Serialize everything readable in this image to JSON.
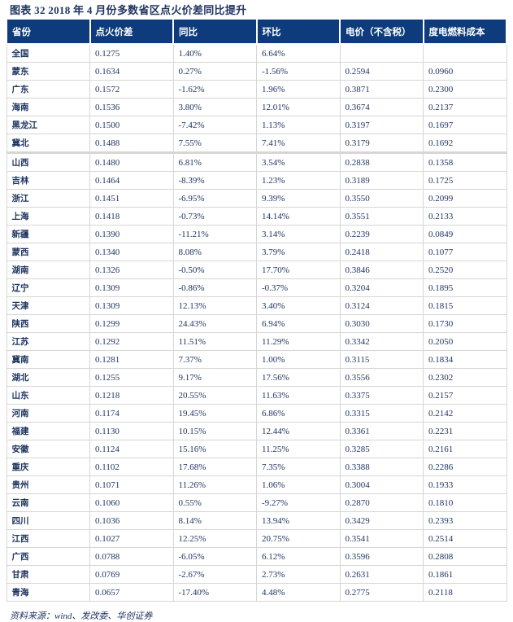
{
  "title": "图表 32   2018 年 4 月份多数省区点火价差同比提升",
  "table": {
    "headers": [
      "省份",
      "点火价差",
      "同比",
      "环比",
      "电价（不含税）",
      "度电燃料成本"
    ],
    "group1": [
      [
        "全国",
        "0.1275",
        "1.40%",
        "6.64%",
        "",
        ""
      ],
      [
        "蒙东",
        "0.1634",
        "0.27%",
        "-1.56%",
        "0.2594",
        "0.0960"
      ],
      [
        "广东",
        "0.1572",
        "-1.62%",
        "1.96%",
        "0.3871",
        "0.2300"
      ],
      [
        "海南",
        "0.1536",
        "3.80%",
        "12.01%",
        "0.3674",
        "0.2137"
      ],
      [
        "黑龙江",
        "0.1500",
        "-7.42%",
        "1.13%",
        "0.3197",
        "0.1697"
      ],
      [
        "冀北",
        "0.1488",
        "7.55%",
        "7.41%",
        "0.3179",
        "0.1692"
      ]
    ],
    "group2": [
      [
        "山西",
        "0.1480",
        "6.81%",
        "3.54%",
        "0.2838",
        "0.1358"
      ],
      [
        "吉林",
        "0.1464",
        "-8.39%",
        "1.23%",
        "0.3189",
        "0.1725"
      ],
      [
        "浙江",
        "0.1451",
        "-6.95%",
        "9.39%",
        "0.3550",
        "0.2099"
      ],
      [
        "上海",
        "0.1418",
        "-0.73%",
        "14.14%",
        "0.3551",
        "0.2133"
      ],
      [
        "新疆",
        "0.1390",
        "-11.21%",
        "3.14%",
        "0.2239",
        "0.0849"
      ],
      [
        "蒙西",
        "0.1340",
        "8.08%",
        "3.79%",
        "0.2418",
        "0.1077"
      ],
      [
        "湖南",
        "0.1326",
        "-0.50%",
        "17.70%",
        "0.3846",
        "0.2520"
      ],
      [
        "辽宁",
        "0.1309",
        "-0.86%",
        "-0.37%",
        "0.3204",
        "0.1895"
      ],
      [
        "天津",
        "0.1309",
        "12.13%",
        "3.40%",
        "0.3124",
        "0.1815"
      ],
      [
        "陕西",
        "0.1299",
        "24.43%",
        "6.94%",
        "0.3030",
        "0.1730"
      ],
      [
        "江苏",
        "0.1292",
        "11.51%",
        "11.29%",
        "0.3342",
        "0.2050"
      ],
      [
        "冀南",
        "0.1281",
        "7.37%",
        "1.00%",
        "0.3115",
        "0.1834"
      ],
      [
        "湖北",
        "0.1255",
        "9.17%",
        "17.56%",
        "0.3556",
        "0.2302"
      ],
      [
        "山东",
        "0.1218",
        "20.55%",
        "11.63%",
        "0.3375",
        "0.2157"
      ],
      [
        "河南",
        "0.1174",
        "19.45%",
        "6.86%",
        "0.3315",
        "0.2142"
      ],
      [
        "福建",
        "0.1130",
        "10.15%",
        "12.44%",
        "0.3361",
        "0.2231"
      ],
      [
        "安徽",
        "0.1124",
        "15.16%",
        "11.25%",
        "0.3285",
        "0.2161"
      ],
      [
        "重庆",
        "0.1102",
        "17.68%",
        "7.35%",
        "0.3388",
        "0.2286"
      ],
      [
        "贵州",
        "0.1071",
        "11.26%",
        "1.06%",
        "0.3004",
        "0.1933"
      ],
      [
        "云南",
        "0.1060",
        "0.55%",
        "-9.27%",
        "0.2870",
        "0.1810"
      ],
      [
        "四川",
        "0.1036",
        "8.14%",
        "13.94%",
        "0.3429",
        "0.2393"
      ],
      [
        "江西",
        "0.1027",
        "12.25%",
        "20.75%",
        "0.3541",
        "0.2514"
      ],
      [
        "广西",
        "0.0788",
        "-6.05%",
        "6.12%",
        "0.3596",
        "0.2808"
      ],
      [
        "甘肃",
        "0.0769",
        "-2.67%",
        "2.73%",
        "0.2631",
        "0.1861"
      ],
      [
        "青海",
        "0.0657",
        "-17.40%",
        "4.48%",
        "0.2775",
        "0.2118"
      ]
    ]
  },
  "source": "资料来源：wind、发改委、华创证券",
  "colors": {
    "header_bg": "#0d3b7c",
    "text": "#1f3560",
    "grid": "#d6d6d6"
  }
}
